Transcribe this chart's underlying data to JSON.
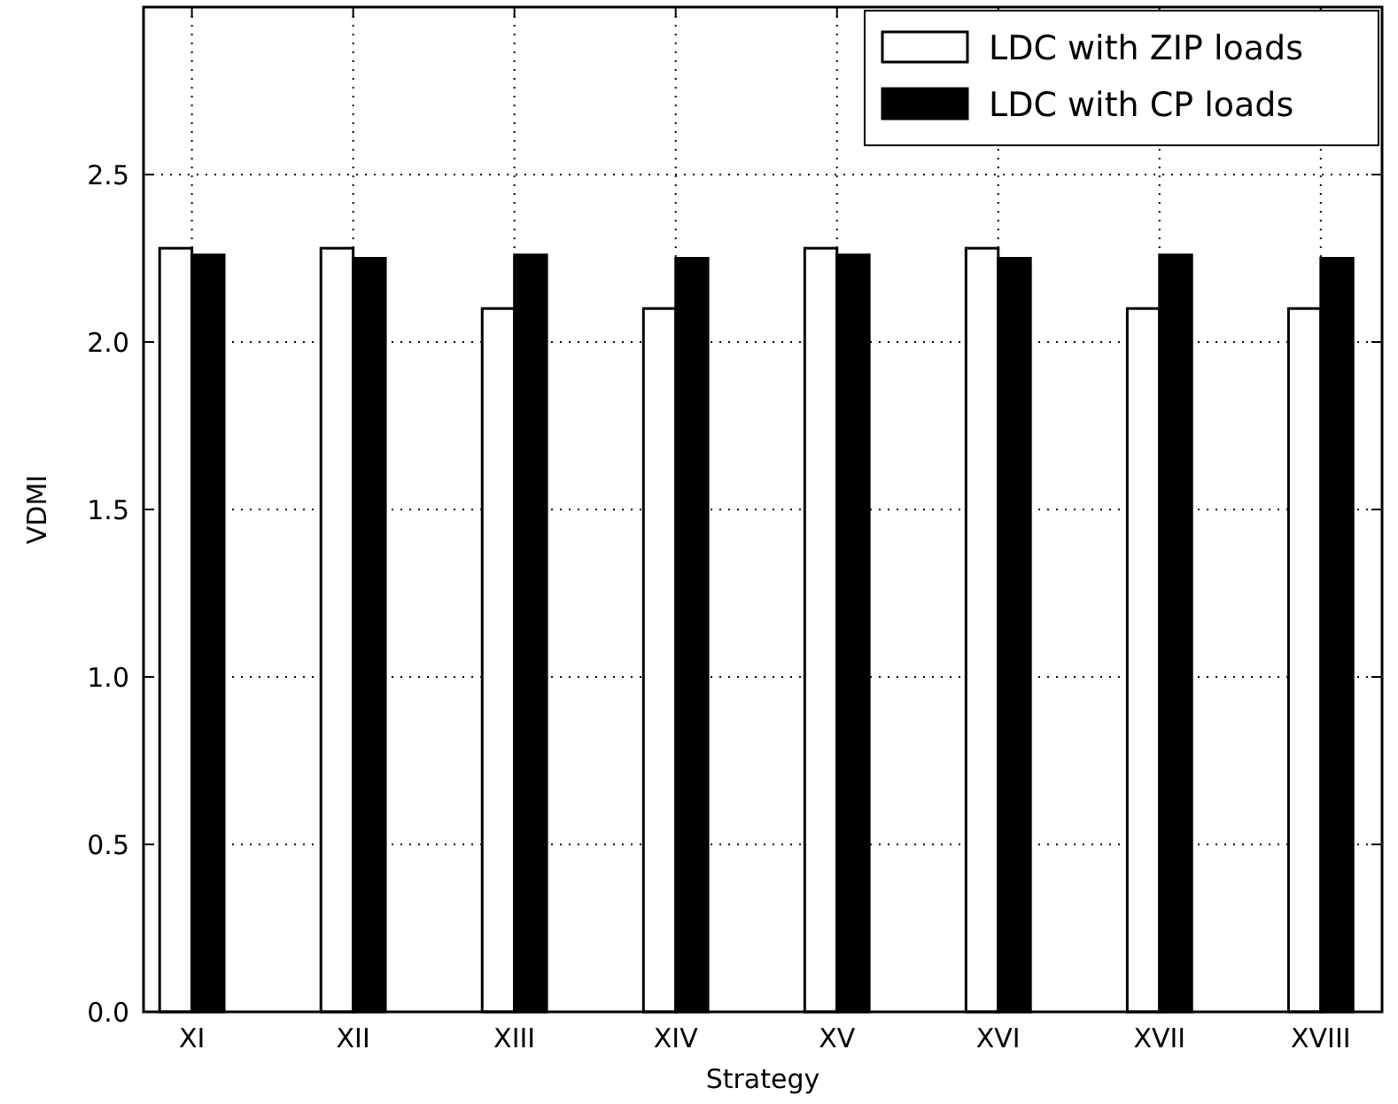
{
  "chart_data": {
    "type": "bar",
    "xlabel": "Strategy",
    "ylabel": "VDMI",
    "categories": [
      "XI",
      "XII",
      "XIII",
      "XIV",
      "XV",
      "XVI",
      "XVII",
      "XVIII"
    ],
    "series": [
      {
        "name": "LDC with ZIP loads",
        "color": "#ffffff",
        "values": [
          2.28,
          2.28,
          2.1,
          2.1,
          2.28,
          2.28,
          2.1,
          2.1
        ]
      },
      {
        "name": "LDC with CP loads",
        "color": "#000000",
        "values": [
          2.26,
          2.25,
          2.26,
          2.25,
          2.26,
          2.25,
          2.26,
          2.25
        ]
      }
    ],
    "ylim": [
      0,
      3
    ],
    "yticks": [
      {
        "value": 0,
        "label": "0.0"
      },
      {
        "value": 0.5,
        "label": "0.5"
      },
      {
        "value": 1,
        "label": "1.0"
      },
      {
        "value": 1.5,
        "label": "1.5"
      },
      {
        "value": 2,
        "label": "2.0"
      },
      {
        "value": 2.5,
        "label": "2.5"
      },
      {
        "value": 3,
        "label": null
      }
    ],
    "grid": true,
    "legend": "top right"
  }
}
